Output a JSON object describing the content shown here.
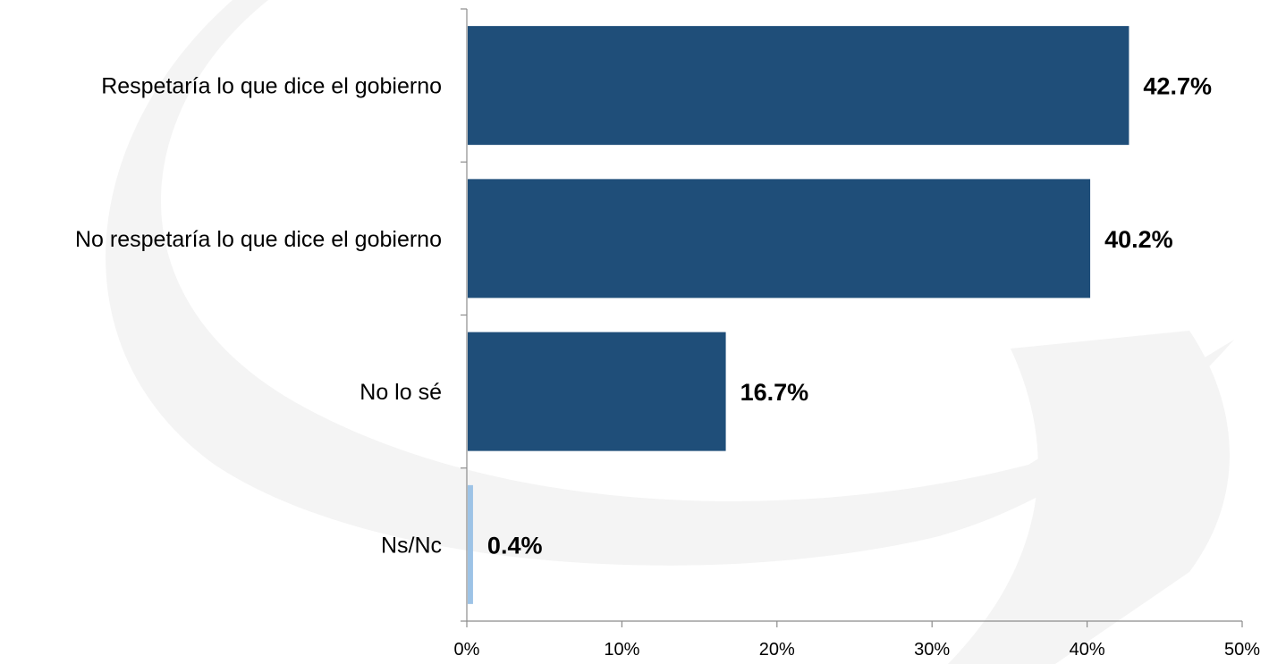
{
  "chart_data": {
    "type": "bar",
    "orientation": "horizontal",
    "categories": [
      "Respetaría lo que dice el gobierno",
      "No respetaría lo que dice el gobierno",
      "No lo sé",
      "Ns/Nc"
    ],
    "values": [
      42.7,
      40.2,
      16.7,
      0.4
    ],
    "value_labels": [
      "42.7%",
      "40.2%",
      "16.7%",
      "0.4%"
    ],
    "bar_colors": [
      "#1f4e79",
      "#1f4e79",
      "#1f4e79",
      "#9dc3e6"
    ],
    "xlim": [
      0,
      50
    ],
    "xticks": [
      0,
      10,
      20,
      30,
      40,
      50
    ],
    "xtick_labels": [
      "0%",
      "10%",
      "20%",
      "30%",
      "40%",
      "50%"
    ],
    "grid": false,
    "legend": "none"
  }
}
